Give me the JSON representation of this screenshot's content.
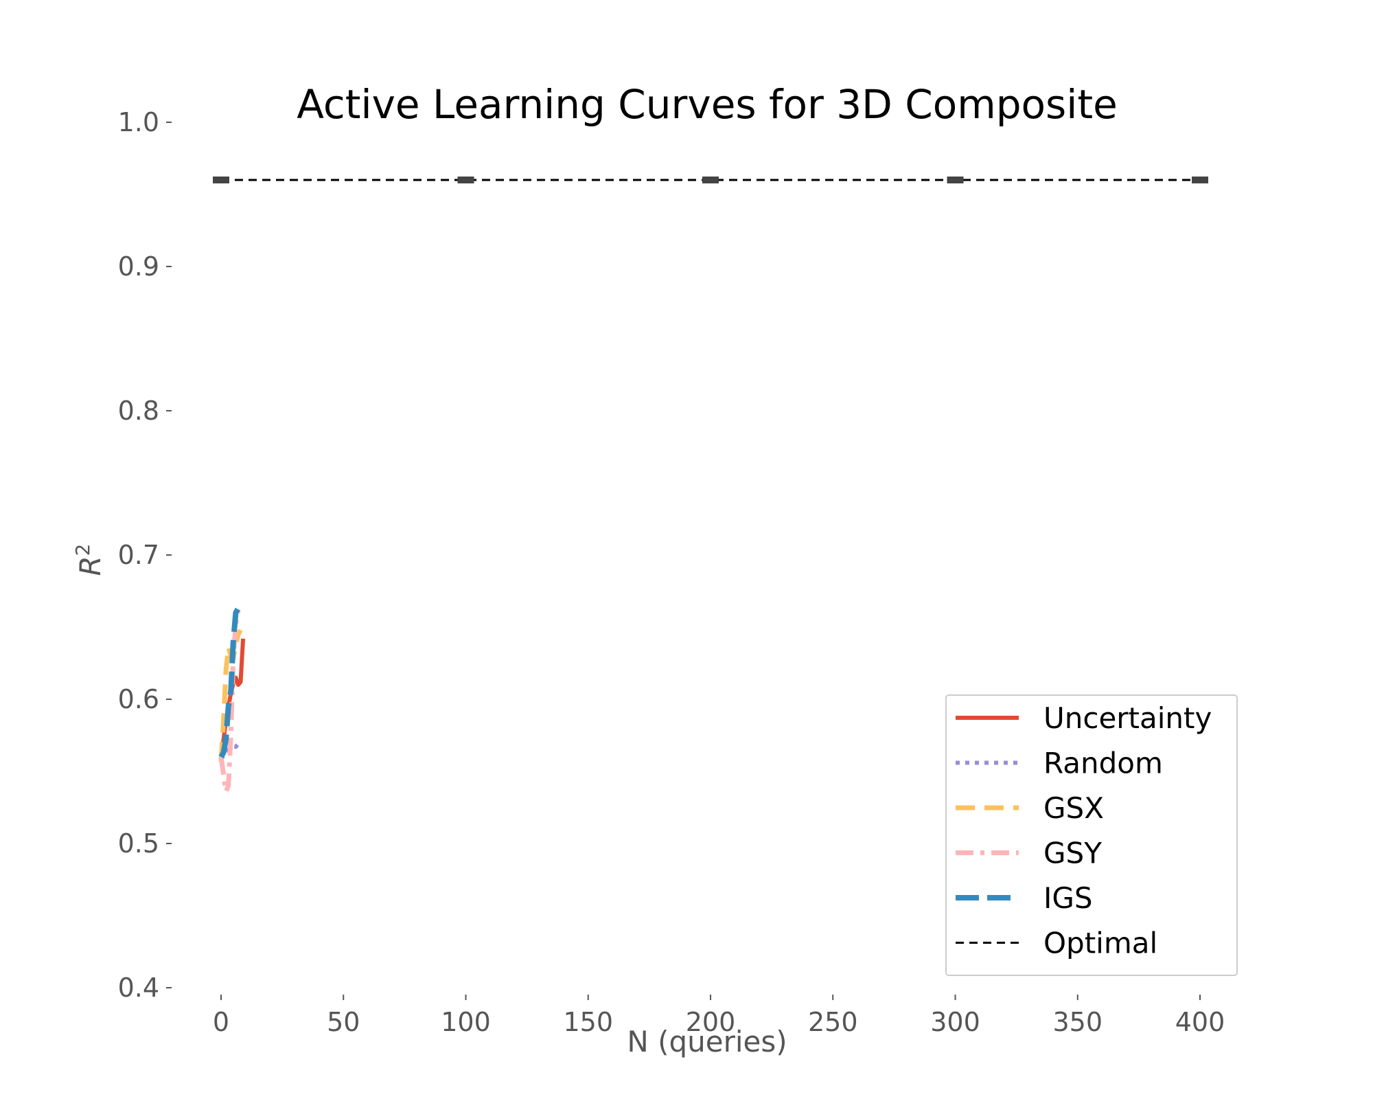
{
  "chart_data": {
    "type": "line",
    "title": "Active Learning Curves for 3D Composite",
    "xlabel": "N (queries)",
    "ylabel": "R",
    "ylabel_superscript": "2",
    "xlim": [
      -5,
      405
    ],
    "ylim": [
      0.4,
      1.0
    ],
    "xticks": [
      0,
      50,
      100,
      150,
      200,
      250,
      300,
      350,
      400
    ],
    "yticks": [
      0.4,
      0.5,
      0.6,
      0.7,
      0.8,
      0.9,
      1.0
    ],
    "grid": false,
    "legend_position": "lower-right",
    "series": [
      {
        "name": "Uncertainty",
        "color": "#E24A33",
        "dash": "solid",
        "x": [
          0,
          1,
          2,
          3,
          4,
          5,
          6,
          7,
          8,
          9
        ],
        "y": [
          0.558,
          0.572,
          0.585,
          0.595,
          0.604,
          0.611,
          0.615,
          0.61,
          0.612,
          0.642
        ]
      },
      {
        "name": "Random",
        "color": "#988ED5",
        "dash": "dotted",
        "x": [
          0,
          1,
          2,
          3,
          4,
          5,
          6,
          7,
          8
        ],
        "y": [
          0.558,
          0.561,
          0.563,
          0.565,
          0.566,
          0.567,
          0.567,
          0.569,
          0.568
        ]
      },
      {
        "name": "GSX",
        "color": "#FBC15E",
        "dash": "dashed",
        "x": [
          0,
          1,
          2,
          3,
          4,
          5,
          6,
          7,
          8
        ],
        "y": [
          0.557,
          0.585,
          0.62,
          0.636,
          0.63,
          0.628,
          0.638,
          0.645,
          0.648
        ]
      },
      {
        "name": "GSY",
        "color": "#FFB5B8",
        "dash": "dashdot",
        "x": [
          0,
          1,
          2,
          3,
          4,
          5,
          6,
          7
        ],
        "y": [
          0.56,
          0.548,
          0.536,
          0.54,
          0.575,
          0.628,
          0.652,
          0.662
        ]
      },
      {
        "name": "IGS",
        "color": "#348ABD",
        "dash": "longdash",
        "x": [
          0,
          1,
          2,
          3,
          4,
          5,
          6,
          7,
          8
        ],
        "y": [
          0.56,
          0.563,
          0.572,
          0.595,
          0.606,
          0.64,
          0.66,
          0.663,
          0.662
        ]
      },
      {
        "name": "Optimal",
        "color": "#000000",
        "dash": "thindash",
        "x": [
          0,
          100,
          200,
          300,
          400
        ],
        "y": [
          0.96,
          0.96,
          0.96,
          0.96,
          0.96
        ]
      }
    ]
  }
}
